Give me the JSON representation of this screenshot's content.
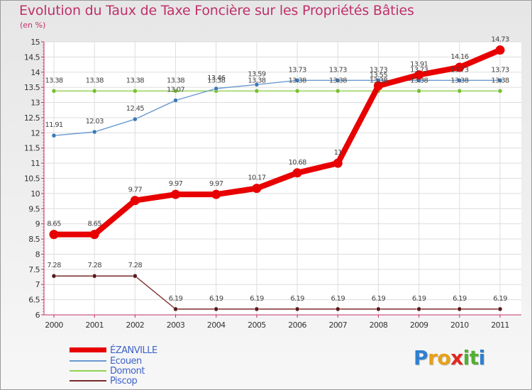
{
  "title": "Evolution du Taux de Taxe Foncière sur les Propriétés Bâties",
  "unit": "(en %)",
  "logo": {
    "letters": [
      "P",
      "r",
      "o",
      "x",
      "i",
      "t",
      "i"
    ],
    "colors": [
      "#2f7fd0",
      "#e8a018",
      "#e8a018",
      "#e02820",
      "#50b030",
      "#50b030",
      "#2f7fd0"
    ]
  },
  "chart_data": {
    "type": "line",
    "title": "Evolution du Taux de Taxe Foncière sur les Propriétés Bâties",
    "ylabel": "(en %)",
    "ylim": [
      6,
      15
    ],
    "yticks": [
      "6",
      "6.5",
      "7",
      "7.5",
      "8",
      "8.5",
      "9",
      "9.5",
      "10",
      "10.5",
      "11",
      "11.5",
      "12",
      "12.5",
      "13",
      "13.5",
      "14",
      "14.5",
      "15"
    ],
    "categories": [
      "2000",
      "2001",
      "2002",
      "2003",
      "2004",
      "2005",
      "2006",
      "2007",
      "2008",
      "2009",
      "2010",
      "2011"
    ],
    "series": [
      {
        "name": "ÉZANVILLE",
        "color": "#e80000",
        "values": [
          8.65,
          8.65,
          9.77,
          9.97,
          9.97,
          10.17,
          10.68,
          11,
          13.55,
          13.91,
          14.16,
          14.73
        ],
        "labels": [
          "8.65",
          "8.65",
          "9.77",
          "9.97",
          "9.97",
          "10.17",
          "10.68",
          "11",
          "13.55",
          "13.91",
          "14.16",
          "14.73"
        ]
      },
      {
        "name": "Ecouen",
        "color": "#6a9ad0",
        "values": [
          11.91,
          12.03,
          12.45,
          13.07,
          13.46,
          13.59,
          13.73,
          13.73,
          13.73,
          13.73,
          13.73,
          13.73
        ],
        "labels": [
          "11.91",
          "12.03",
          "12.45",
          "13.07",
          "13.46",
          "13.59",
          "13.73",
          "13.73",
          "13.73",
          "13.73",
          "13.73",
          "13.73"
        ]
      },
      {
        "name": "Domont",
        "color": "#90d050",
        "values": [
          13.38,
          13.38,
          13.38,
          13.38,
          13.38,
          13.38,
          13.38,
          13.38,
          13.38,
          13.38,
          13.38,
          13.38
        ],
        "labels": [
          "13.38",
          "13.38",
          "13.38",
          "13.38",
          "13.38",
          "13.38",
          "13.38",
          "13.38",
          "13.38",
          "13.38",
          "13.38",
          "13.38"
        ]
      },
      {
        "name": "Piscop",
        "color": "#7a2a2a",
        "values": [
          7.28,
          7.28,
          7.28,
          6.19,
          6.19,
          6.19,
          6.19,
          6.19,
          6.19,
          6.19,
          6.19,
          6.19
        ],
        "labels": [
          "7.28",
          "7.28",
          "7.28",
          "6.19",
          "6.19",
          "6.19",
          "6.19",
          "6.19",
          "6.19",
          "6.19",
          "6.19",
          "6.19"
        ]
      }
    ],
    "legend": [
      "ÉZANVILLE",
      "Ecouen",
      "Domont",
      "Piscop"
    ]
  }
}
